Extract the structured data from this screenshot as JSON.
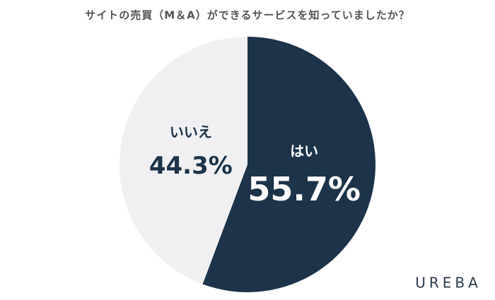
{
  "chart_data": {
    "type": "pie",
    "title": "サイトの売買（M＆A）ができるサービスを知っていましたか？",
    "categories": [
      "はい",
      "いいえ"
    ],
    "values": [
      55.7,
      44.3
    ],
    "value_labels": [
      "55.7%",
      "44.3%"
    ],
    "colors": [
      "#1c3349",
      "#f0f0f2"
    ]
  },
  "logo": "UREBA"
}
